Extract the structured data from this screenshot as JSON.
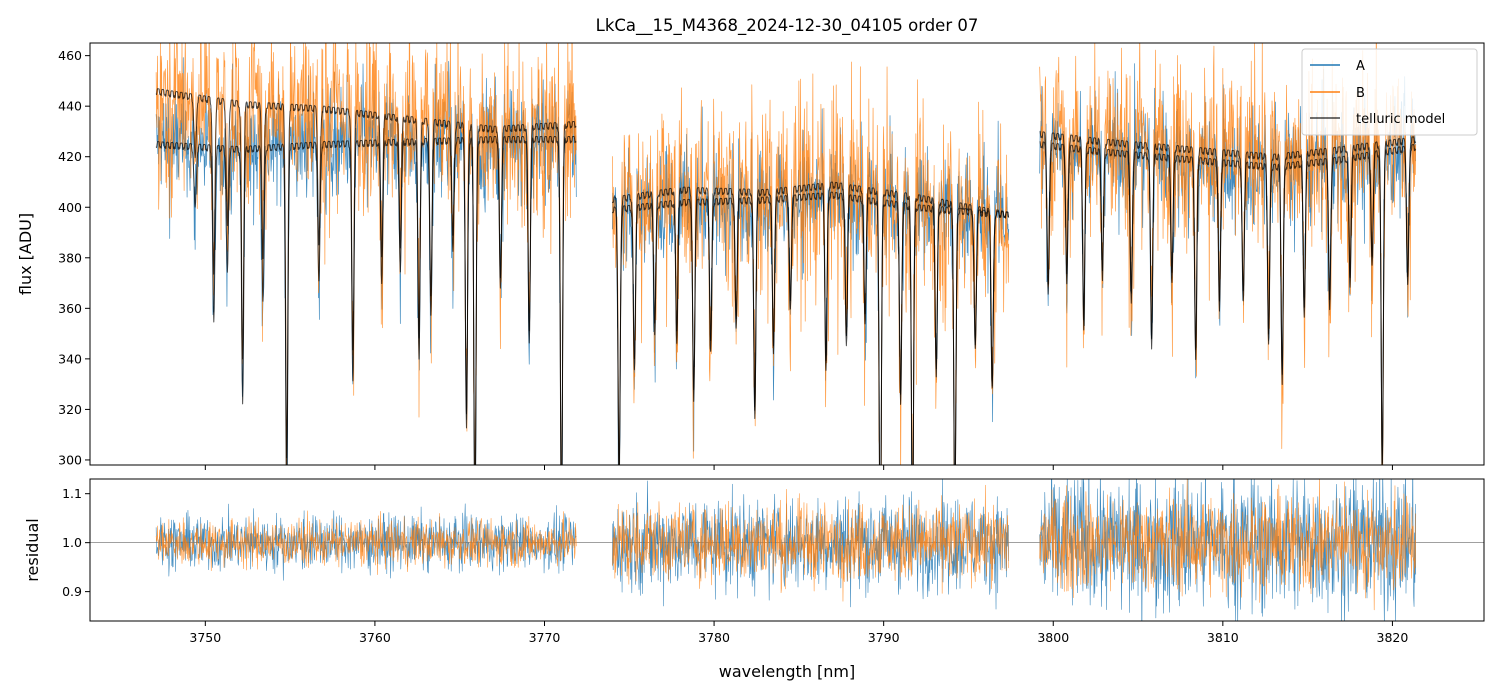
{
  "chart_data": {
    "type": "line",
    "title": "LkCa__15_M4368_2024-12-30_04105  order 07",
    "xlabel": "wavelength [nm]",
    "xlim": [
      3743.2,
      3825.4
    ],
    "xticks": [
      3750,
      3760,
      3770,
      3780,
      3790,
      3800,
      3810,
      3820
    ],
    "legend": {
      "placement": "top-right",
      "entries": [
        "A",
        "B",
        "telluric model"
      ]
    },
    "colors": {
      "A": "#1f77b4",
      "B": "#ff7f0e",
      "telluric model": "#000000",
      "residual_ref": "#808080"
    },
    "segments": [
      [
        3747.1,
        3771.9
      ],
      [
        3774.0,
        3797.4
      ],
      [
        3799.2,
        3821.4
      ]
    ],
    "panels": [
      {
        "name": "flux",
        "ylabel": "flux [ADU]",
        "ylim": [
          298,
          465
        ],
        "yticks": [
          300,
          320,
          340,
          360,
          380,
          400,
          420,
          440,
          460
        ],
        "series": [
          {
            "name": "A",
            "role": "spectrum",
            "noise": 10
          },
          {
            "name": "B",
            "role": "spectrum",
            "noise": 16
          },
          {
            "name": "telluric model",
            "role": "model"
          }
        ],
        "continuum": {
          "A": [
            [
              3747.1,
              426
            ],
            [
              3752,
              424
            ],
            [
              3757,
              426
            ],
            [
              3762,
              427
            ],
            [
              3767,
              428
            ],
            [
              3771.9,
              428
            ],
            [
              3774.0,
              400
            ],
            [
              3778,
              403
            ],
            [
              3783,
              404
            ],
            [
              3787,
              406
            ],
            [
              3792,
              401
            ],
            [
              3797.4,
              398
            ],
            [
              3799.2,
              426
            ],
            [
              3803,
              423
            ],
            [
              3808,
              420
            ],
            [
              3813,
              417
            ],
            [
              3817,
              420
            ],
            [
              3821.4,
              425
            ]
          ],
          "B": [
            [
              3747.1,
              447
            ],
            [
              3752,
              442
            ],
            [
              3757,
              440
            ],
            [
              3762,
              436
            ],
            [
              3767,
              432
            ],
            [
              3771.9,
              434
            ],
            [
              3774.0,
              404
            ],
            [
              3778,
              408
            ],
            [
              3783,
              407
            ],
            [
              3787,
              410
            ],
            [
              3792,
              405
            ],
            [
              3797.4,
              398
            ],
            [
              3799.2,
              430
            ],
            [
              3803,
              427
            ],
            [
              3808,
              424
            ],
            [
              3813,
              421
            ],
            [
              3817,
              424
            ],
            [
              3821.4,
              428
            ]
          ]
        },
        "absorption_lines_nm": [
          3749.4,
          3750.5,
          3751.3,
          3752.2,
          3753.4,
          3754.8,
          3756.7,
          3758.7,
          3760.4,
          3761.5,
          3762.6,
          3763.3,
          3764.6,
          3765.4,
          3765.9,
          3767.4,
          3769.1,
          3771.0,
          3774.4,
          3775.3,
          3776.5,
          3777.8,
          3778.8,
          3779.8,
          3781.3,
          3782.4,
          3783.5,
          3784.5,
          3786.6,
          3787.8,
          3788.9,
          3789.8,
          3791.0,
          3791.7,
          3793.1,
          3794.2,
          3795.4,
          3796.4,
          3799.7,
          3800.8,
          3801.8,
          3802.9,
          3804.6,
          3805.8,
          3807.0,
          3808.4,
          3809.8,
          3811.2,
          3812.7,
          3813.5,
          3814.8,
          3816.3,
          3817.5,
          3818.8,
          3819.4,
          3820.9
        ],
        "absorption_depths_adu": [
          25,
          70,
          50,
          100,
          60,
          140,
          55,
          95,
          55,
          50,
          85,
          70,
          45,
          115,
          155,
          60,
          80,
          155,
          110,
          65,
          50,
          55,
          80,
          60,
          50,
          85,
          60,
          45,
          70,
          60,
          50,
          140,
          80,
          130,
          65,
          120,
          55,
          70,
          60,
          55,
          70,
          50,
          60,
          75,
          50,
          80,
          60,
          55,
          70,
          85,
          60,
          60,
          50,
          45,
          125,
          55
        ]
      },
      {
        "name": "residual",
        "ylabel": "residual",
        "ylim": [
          0.84,
          1.13
        ],
        "yticks": [
          0.9,
          1.0,
          1.1
        ],
        "reference_line": 1.0,
        "series": [
          {
            "name": "A",
            "noise": [
              0.028,
              0.048,
              0.072
            ]
          },
          {
            "name": "B",
            "noise": [
              0.024,
              0.04,
              0.05
            ]
          }
        ]
      }
    ]
  }
}
